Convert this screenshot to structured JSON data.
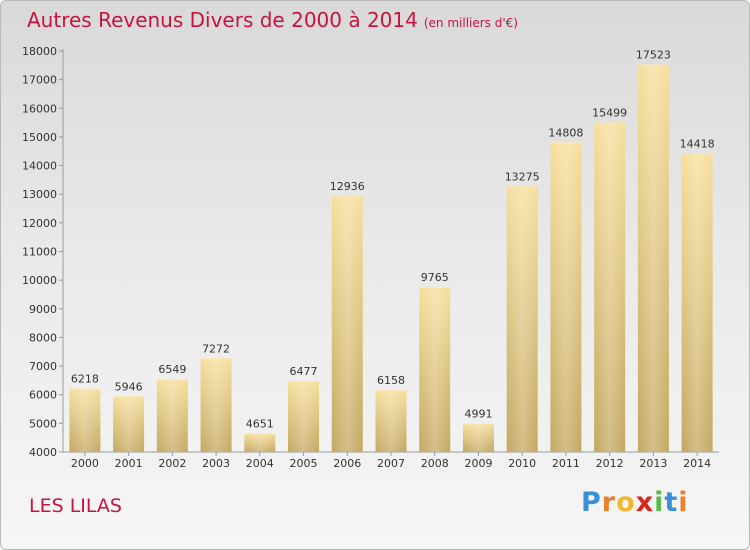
{
  "header": {
    "title": "Autres Revenus Divers de 2000 à 2014",
    "subtitle": "(en milliers d'€)"
  },
  "footer": {
    "city": "LES LILAS",
    "logo_letters": [
      "P",
      "r",
      "o",
      "x",
      "i",
      "t",
      "i"
    ],
    "logo_colors": [
      "#3a8fd6",
      "#e8812a",
      "#f2b630",
      "#d9261c",
      "#58b947",
      "#3a8fd6",
      "#e8812a"
    ]
  },
  "chart_data": {
    "type": "bar",
    "title": "Autres Revenus Divers de 2000 à 2014",
    "categories": [
      "2000",
      "2001",
      "2002",
      "2003",
      "2004",
      "2005",
      "2006",
      "2007",
      "2008",
      "2009",
      "2010",
      "2011",
      "2012",
      "2013",
      "2014"
    ],
    "values": [
      6218,
      5946,
      6549,
      7272,
      4651,
      6477,
      12936,
      6158,
      9765,
      4991,
      13275,
      14808,
      15499,
      17523,
      14418
    ],
    "ylim": [
      4000,
      18000
    ],
    "yticks": [
      4000,
      5000,
      6000,
      7000,
      8000,
      9000,
      10000,
      11000,
      12000,
      13000,
      14000,
      15000,
      16000,
      17000,
      18000
    ],
    "grid": false,
    "bar_color": "#e8cf8a"
  }
}
